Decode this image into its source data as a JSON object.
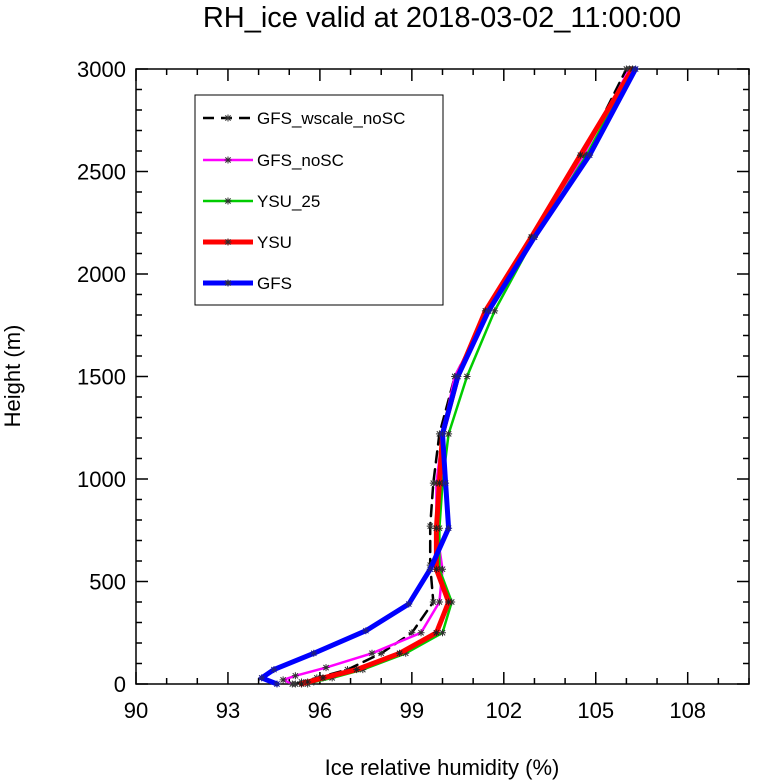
{
  "chart_data": {
    "type": "line",
    "title": "RH_ice valid at 2018-03-02_11:00:00",
    "xlabel": "Ice relative humidity (%)",
    "ylabel": "Height (m)",
    "xlim": [
      90,
      110
    ],
    "ylim": [
      0,
      3000
    ],
    "xticks": [
      "90",
      "93",
      "96",
      "99",
      "102",
      "105",
      "108"
    ],
    "yticks": [
      "0",
      "500",
      "1000",
      "1500",
      "2000",
      "2500",
      "3000"
    ],
    "grid": false,
    "legend_position": "top-left",
    "series": [
      {
        "name": "GFS_wscale_noSC",
        "color": "#000000",
        "dash": "dashed",
        "width": 2.5,
        "x": [
          95.2,
          95.4,
          95.9,
          96.9,
          98.0,
          99.0,
          99.7,
          99.6,
          99.6,
          99.7,
          99.9,
          100.4,
          101.5,
          102.9,
          104.6,
          106.0
        ],
        "y": [
          0,
          10,
          30,
          70,
          150,
          250,
          400,
          580,
          770,
          980,
          1220,
          1500,
          1820,
          2180,
          2580,
          3000
        ]
      },
      {
        "name": "GFS_noSC",
        "color": "#ff00ff",
        "dash": "solid",
        "width": 2.5,
        "x": [
          95.1,
          94.8,
          95.2,
          96.2,
          97.7,
          99.3,
          99.9,
          100.0,
          99.8,
          99.8,
          100.0,
          100.4,
          101.5,
          102.9,
          104.6,
          106.1
        ],
        "y": [
          0,
          20,
          40,
          80,
          150,
          250,
          400,
          560,
          760,
          980,
          1220,
          1500,
          1820,
          2180,
          2580,
          3000
        ]
      },
      {
        "name": "YSU_25",
        "color": "#00cc00",
        "dash": "solid",
        "width": 2.5,
        "x": [
          95.6,
          95.8,
          96.4,
          97.4,
          98.8,
          100.0,
          100.3,
          99.9,
          99.9,
          100.0,
          100.2,
          100.8,
          101.7,
          103.0,
          104.7,
          106.2
        ],
        "y": [
          0,
          10,
          30,
          70,
          150,
          250,
          400,
          560,
          760,
          980,
          1220,
          1500,
          1820,
          2180,
          2580,
          3000
        ]
      },
      {
        "name": "YSU",
        "color": "#ff0000",
        "dash": "solid",
        "width": 5,
        "x": [
          95.4,
          95.6,
          96.1,
          97.2,
          98.6,
          99.8,
          100.2,
          99.8,
          99.8,
          99.9,
          100.0,
          100.5,
          101.4,
          102.9,
          104.5,
          106.2
        ],
        "y": [
          0,
          10,
          30,
          70,
          150,
          250,
          400,
          560,
          760,
          980,
          1220,
          1500,
          1820,
          2180,
          2580,
          3000
        ]
      },
      {
        "name": "GFS",
        "color": "#0000ff",
        "dash": "solid",
        "width": 5,
        "x": [
          94.6,
          94.1,
          94.5,
          95.8,
          97.5,
          98.9,
          99.6,
          100.2,
          100.1,
          100.0,
          100.5,
          101.5,
          103.0,
          104.8,
          106.3
        ],
        "y": [
          0,
          30,
          70,
          150,
          260,
          390,
          560,
          760,
          980,
          1220,
          1500,
          1820,
          2180,
          2580,
          3000
        ]
      }
    ]
  }
}
